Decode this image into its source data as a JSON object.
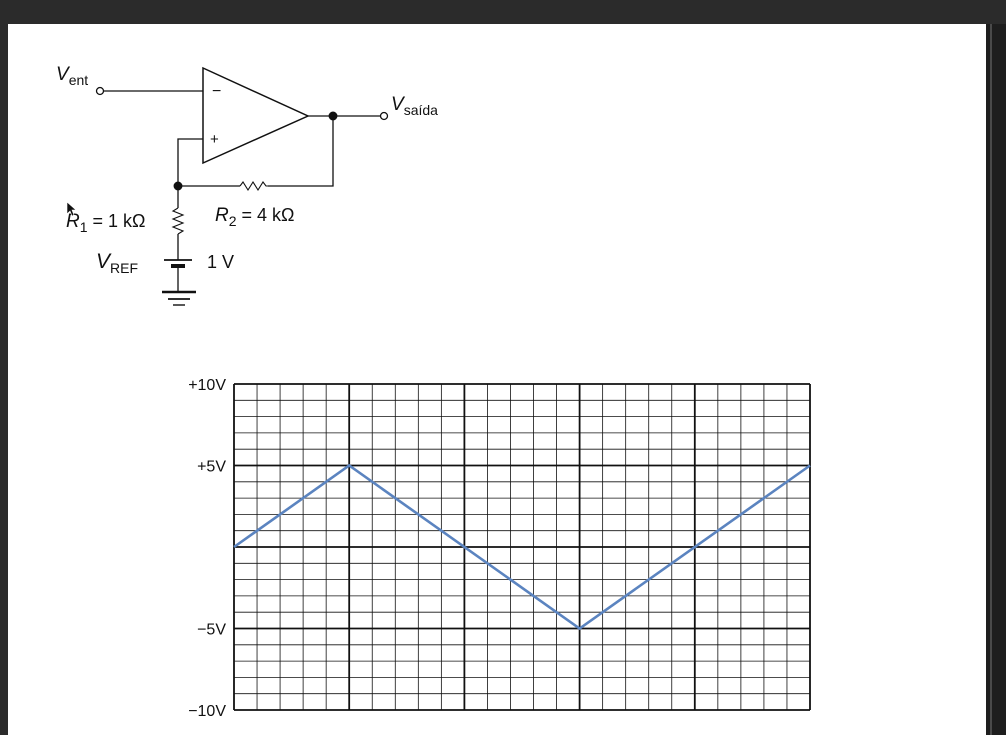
{
  "circuit": {
    "vin_main": "V",
    "vin_sub": "ent",
    "vout_main": "V",
    "vout_sub": "saída",
    "minus_sign": "−",
    "plus_sign": "+",
    "r1_sym": "R",
    "r1_sub": "1",
    "r1_val": " = 1 kΩ",
    "r2_sym": "R",
    "r2_sub": "2",
    "r2_val": " = 4 kΩ",
    "vref_main": "V",
    "vref_sub": "REF",
    "battery_value": "1 V"
  },
  "chart_data": {
    "type": "line",
    "title": "",
    "xlabel": "",
    "ylabel": "",
    "ylim": [
      -10,
      10
    ],
    "yticks": [
      10,
      5,
      -5,
      -10
    ],
    "ytick_labels": [
      "+10V",
      "+5V",
      "−5V",
      "−10V"
    ],
    "x_divisions": 25,
    "y_divisions": 20,
    "x": [
      0,
      5,
      15,
      25
    ],
    "values": [
      0,
      5,
      -5,
      5
    ],
    "line_color": "#5b84c0",
    "grid": true
  }
}
